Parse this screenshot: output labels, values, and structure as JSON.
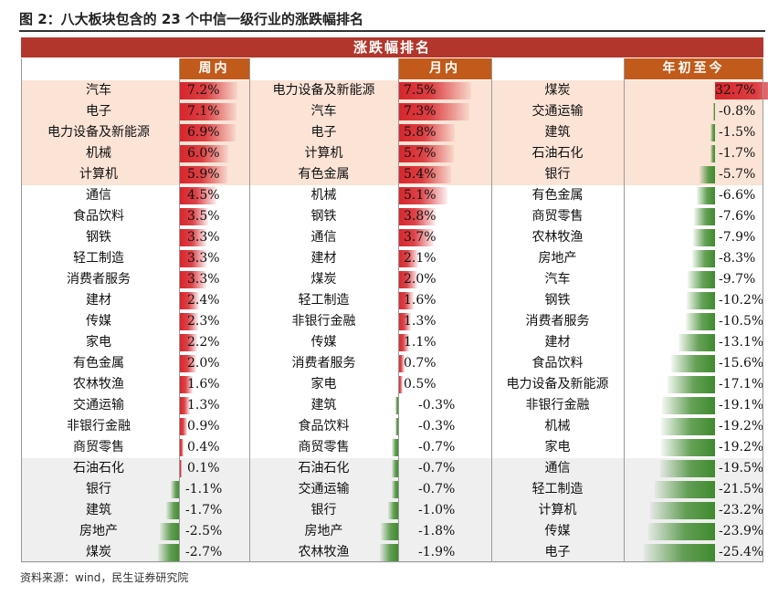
{
  "title": "图 2：八大板块包含的 23 个中信一级行业的涨跌幅排名",
  "header": "涨跌幅排名",
  "source": "资料来源：wind，民生证券研究院",
  "colors": {
    "header": "#b3362c",
    "subheader": "#c15a1a",
    "positive": "#d7262c",
    "negative": "#3f8a2e",
    "top_band": "#fbe3d6",
    "bottom_band": "#efefef"
  },
  "chart_data": {
    "type": "table",
    "columns": [
      {
        "label": "周内",
        "rows": [
          {
            "name": "汽车",
            "value": 7.2,
            "label": "7.2%"
          },
          {
            "name": "电子",
            "value": 7.1,
            "label": "7.1%"
          },
          {
            "name": "电力设备及新能源",
            "value": 6.9,
            "label": "6.9%"
          },
          {
            "name": "机械",
            "value": 6.0,
            "label": "6.0%"
          },
          {
            "name": "计算机",
            "value": 5.9,
            "label": "5.9%"
          },
          {
            "name": "通信",
            "value": 4.5,
            "label": "4.5%"
          },
          {
            "name": "食品饮料",
            "value": 3.5,
            "label": "3.5%"
          },
          {
            "name": "钢铁",
            "value": 3.3,
            "label": "3.3%"
          },
          {
            "name": "轻工制造",
            "value": 3.3,
            "label": "3.3%"
          },
          {
            "name": "消费者服务",
            "value": 3.3,
            "label": "3.3%"
          },
          {
            "name": "建材",
            "value": 2.4,
            "label": "2.4%"
          },
          {
            "name": "传媒",
            "value": 2.3,
            "label": "2.3%"
          },
          {
            "name": "家电",
            "value": 2.2,
            "label": "2.2%"
          },
          {
            "name": "有色金属",
            "value": 2.0,
            "label": "2.0%"
          },
          {
            "name": "农林牧渔",
            "value": 1.6,
            "label": "1.6%"
          },
          {
            "name": "交通运输",
            "value": 1.3,
            "label": "1.3%"
          },
          {
            "name": "非银行金融",
            "value": 0.9,
            "label": "0.9%"
          },
          {
            "name": "商贸零售",
            "value": 0.4,
            "label": "0.4%"
          },
          {
            "name": "石油石化",
            "value": 0.1,
            "label": "0.1%"
          },
          {
            "name": "银行",
            "value": -1.1,
            "label": "-1.1%"
          },
          {
            "name": "建筑",
            "value": -1.7,
            "label": "-1.7%"
          },
          {
            "name": "房地产",
            "value": -2.5,
            "label": "-2.5%"
          },
          {
            "name": "煤炭",
            "value": -2.7,
            "label": "-2.7%"
          }
        ]
      },
      {
        "label": "月内",
        "rows": [
          {
            "name": "电力设备及新能源",
            "value": 7.5,
            "label": "7.5%"
          },
          {
            "name": "汽车",
            "value": 7.3,
            "label": "7.3%"
          },
          {
            "name": "电子",
            "value": 5.8,
            "label": "5.8%"
          },
          {
            "name": "计算机",
            "value": 5.7,
            "label": "5.7%"
          },
          {
            "name": "有色金属",
            "value": 5.4,
            "label": "5.4%"
          },
          {
            "name": "机械",
            "value": 5.1,
            "label": "5.1%"
          },
          {
            "name": "钢铁",
            "value": 3.8,
            "label": "3.8%"
          },
          {
            "name": "通信",
            "value": 3.7,
            "label": "3.7%"
          },
          {
            "name": "建材",
            "value": 2.1,
            "label": "2.1%"
          },
          {
            "name": "煤炭",
            "value": 2.0,
            "label": "2.0%"
          },
          {
            "name": "轻工制造",
            "value": 1.6,
            "label": "1.6%"
          },
          {
            "name": "非银行金融",
            "value": 1.3,
            "label": "1.3%"
          },
          {
            "name": "传媒",
            "value": 1.1,
            "label": "1.1%"
          },
          {
            "name": "消费者服务",
            "value": 0.7,
            "label": "0.7%"
          },
          {
            "name": "家电",
            "value": 0.5,
            "label": "0.5%"
          },
          {
            "name": "建筑",
            "value": -0.3,
            "label": "-0.3%"
          },
          {
            "name": "食品饮料",
            "value": -0.3,
            "label": "-0.3%"
          },
          {
            "name": "商贸零售",
            "value": -0.7,
            "label": "-0.7%"
          },
          {
            "name": "石油石化",
            "value": -0.7,
            "label": "-0.7%"
          },
          {
            "name": "交通运输",
            "value": -0.7,
            "label": "-0.7%"
          },
          {
            "name": "银行",
            "value": -1.0,
            "label": "-1.0%"
          },
          {
            "name": "房地产",
            "value": -1.8,
            "label": "-1.8%"
          },
          {
            "name": "农林牧渔",
            "value": -1.9,
            "label": "-1.9%"
          }
        ]
      },
      {
        "label": "年初至今",
        "rows": [
          {
            "name": "煤炭",
            "value": 32.7,
            "label": "32.7%"
          },
          {
            "name": "交通运输",
            "value": -0.8,
            "label": "-0.8%"
          },
          {
            "name": "建筑",
            "value": -1.5,
            "label": "-1.5%"
          },
          {
            "name": "石油石化",
            "value": -1.7,
            "label": "-1.7%"
          },
          {
            "name": "银行",
            "value": -5.7,
            "label": "-5.7%"
          },
          {
            "name": "有色金属",
            "value": -6.6,
            "label": "-6.6%"
          },
          {
            "name": "商贸零售",
            "value": -7.6,
            "label": "-7.6%"
          },
          {
            "name": "农林牧渔",
            "value": -7.9,
            "label": "-7.9%"
          },
          {
            "name": "房地产",
            "value": -8.3,
            "label": "-8.3%"
          },
          {
            "name": "汽车",
            "value": -9.7,
            "label": "-9.7%"
          },
          {
            "name": "钢铁",
            "value": -10.2,
            "label": "-10.2%"
          },
          {
            "name": "消费者服务",
            "value": -10.5,
            "label": "-10.5%"
          },
          {
            "name": "建材",
            "value": -13.1,
            "label": "-13.1%"
          },
          {
            "name": "食品饮料",
            "value": -15.6,
            "label": "-15.6%"
          },
          {
            "name": "电力设备及新能源",
            "value": -17.1,
            "label": "-17.1%"
          },
          {
            "name": "非银行金融",
            "value": -19.1,
            "label": "-19.1%"
          },
          {
            "name": "机械",
            "value": -19.2,
            "label": "-19.2%"
          },
          {
            "name": "家电",
            "value": -19.2,
            "label": "-19.2%"
          },
          {
            "name": "通信",
            "value": -19.5,
            "label": "-19.5%"
          },
          {
            "name": "轻工制造",
            "value": -21.5,
            "label": "-21.5%"
          },
          {
            "name": "计算机",
            "value": -23.2,
            "label": "-23.2%"
          },
          {
            "name": "传媒",
            "value": -23.9,
            "label": "-23.9%"
          },
          {
            "name": "电子",
            "value": -25.4,
            "label": "-25.4%"
          }
        ]
      }
    ]
  }
}
